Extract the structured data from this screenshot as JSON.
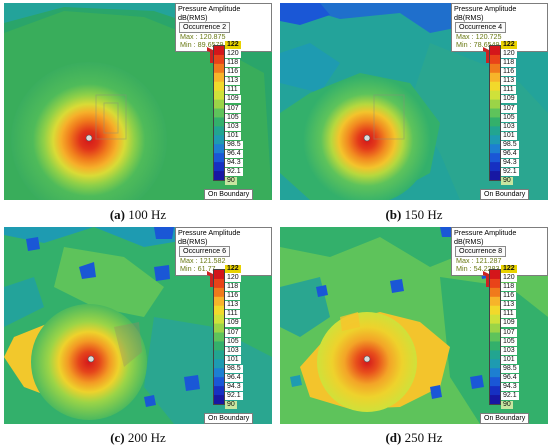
{
  "legend": {
    "title": "Pressure Amplitude dB(RMS)",
    "ticks": [
      "122",
      "120",
      "118",
      "116",
      "113",
      "111",
      "109",
      "107",
      "105",
      "103",
      "101",
      "98.5",
      "96.4",
      "94.3",
      "92.1",
      "90"
    ],
    "boundary_label": "On Boundary",
    "scale_colors": [
      "#d4161b",
      "#e94319",
      "#f07a1c",
      "#f7b42a",
      "#f2d92b",
      "#cfe13a",
      "#9bd447",
      "#5ec35b",
      "#33b06b",
      "#22a590",
      "#1e9bb1",
      "#1d7fd1",
      "#1a57d6",
      "#1630c2",
      "#1717a3"
    ]
  },
  "panels": [
    {
      "occurrence": "Occurrence 2",
      "max": "Max : 120.875",
      "min": "Min : 89.6579",
      "caption_letter": "(a)",
      "caption_freq": "100 Hz"
    },
    {
      "occurrence": "Occurrence 4",
      "max": "Max : 120.725",
      "min": "Min : 78.6549",
      "caption_letter": "(b)",
      "caption_freq": "150 Hz"
    },
    {
      "occurrence": "Occurrence 6",
      "max": "Max : 121.582",
      "min": "Min : 61.77",
      "caption_letter": "(c)",
      "caption_freq": "200 Hz"
    },
    {
      "occurrence": "Occurrence 8",
      "max": "Max : 121.287",
      "min": "Min : 54.2283",
      "caption_letter": "(d)",
      "caption_freq": "250 Hz"
    }
  ]
}
